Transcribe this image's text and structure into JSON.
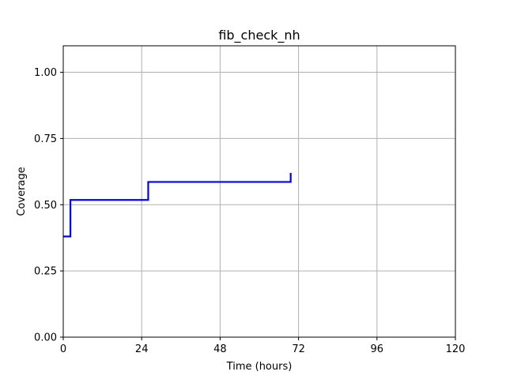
{
  "chart_data": {
    "type": "line",
    "title": "fib_check_nh",
    "xlabel": "Time (hours)",
    "ylabel": "Coverage",
    "xlim": [
      0,
      120
    ],
    "ylim": [
      0,
      1.1
    ],
    "xticks": [
      0,
      24,
      48,
      72,
      96,
      120
    ],
    "xtick_labels": [
      "0",
      "24",
      "48",
      "72",
      "96",
      "120"
    ],
    "yticks": [
      0,
      0.25,
      0.5,
      0.75,
      1.0
    ],
    "ytick_labels": [
      "0.00",
      "0.25",
      "0.50",
      "0.75",
      "1.00"
    ],
    "grid": true,
    "step": true,
    "series": [
      {
        "color": "#0000ff",
        "x": [
          0,
          2.2,
          26.0,
          68.6,
          69.6
        ],
        "y": [
          0.38,
          0.518,
          0.586,
          0.586,
          0.62
        ]
      }
    ]
  }
}
